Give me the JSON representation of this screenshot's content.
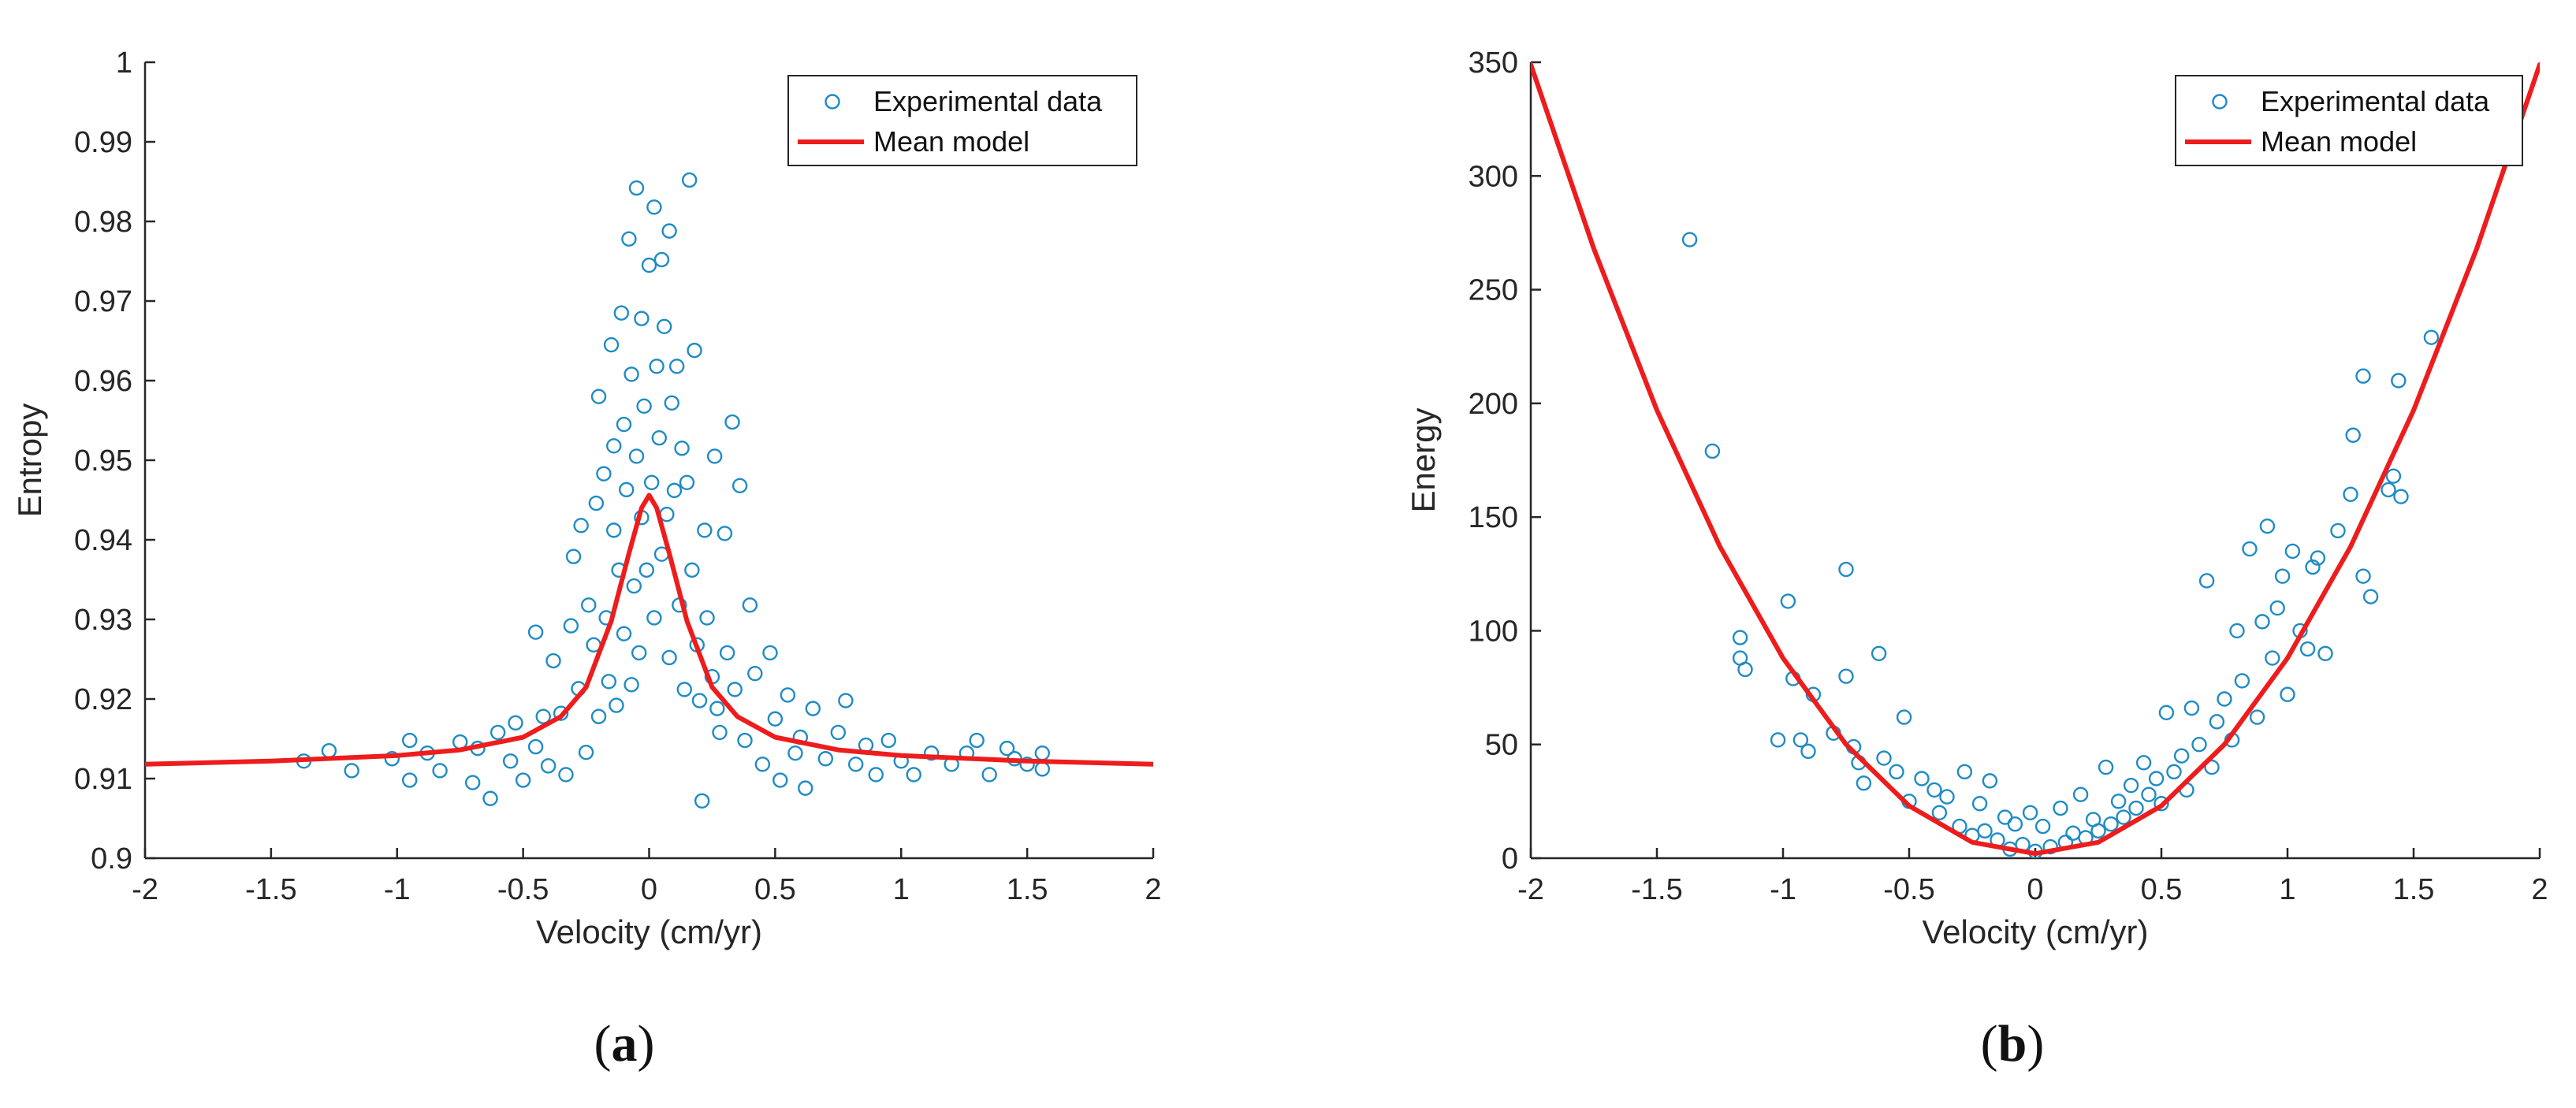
{
  "colors": {
    "data": "#1f8bc4",
    "model": "#ee1c1c"
  },
  "chart_data": [
    {
      "type": "scatter",
      "panel_label": "a",
      "title": "",
      "xlabel": "Velocity (cm/yr)",
      "ylabel": "Entropy",
      "xlim": [
        -2,
        2
      ],
      "ylim": [
        0.9,
        1.0
      ],
      "xticks": [
        -2,
        -1.5,
        -1,
        -0.5,
        0,
        0.5,
        1,
        1.5,
        2
      ],
      "xtick_labels": [
        "-2",
        "-1.5",
        "-1",
        "-0.5",
        "0",
        "0.5",
        "1",
        "1.5",
        "2"
      ],
      "yticks": [
        0.9,
        0.91,
        0.92,
        0.93,
        0.94,
        0.95,
        0.96,
        0.97,
        0.98,
        0.99,
        1.0
      ],
      "ytick_labels": [
        "0.9",
        "0.91",
        "0.92",
        "0.93",
        "0.94",
        "0.95",
        "0.96",
        "0.97",
        "0.98",
        "0.99",
        "1"
      ],
      "grid": false,
      "legend_position": "top-right",
      "series": [
        {
          "name": "Experimental data",
          "kind": "scatter",
          "points": [
            [
              -1.37,
              0.9122
            ],
            [
              -1.27,
              0.9135
            ],
            [
              -1.18,
              0.911
            ],
            [
              -1.02,
              0.9125
            ],
            [
              -0.95,
              0.9148
            ],
            [
              -0.95,
              0.9098
            ],
            [
              -0.88,
              0.9132
            ],
            [
              -0.83,
              0.911
            ],
            [
              -0.75,
              0.9146
            ],
            [
              -0.7,
              0.9095
            ],
            [
              -0.68,
              0.9138
            ],
            [
              -0.63,
              0.9075
            ],
            [
              -0.6,
              0.9158
            ],
            [
              -0.55,
              0.9122
            ],
            [
              -0.53,
              0.917
            ],
            [
              -0.5,
              0.9098
            ],
            [
              -0.45,
              0.9284
            ],
            [
              -0.45,
              0.914
            ],
            [
              -0.42,
              0.9178
            ],
            [
              -0.4,
              0.9116
            ],
            [
              -0.38,
              0.9248
            ],
            [
              -0.35,
              0.9182
            ],
            [
              -0.33,
              0.9105
            ],
            [
              -0.31,
              0.9292
            ],
            [
              -0.3,
              0.9379
            ],
            [
              -0.28,
              0.9213
            ],
            [
              -0.27,
              0.9418
            ],
            [
              -0.25,
              0.9133
            ],
            [
              -0.24,
              0.9318
            ],
            [
              -0.22,
              0.9268
            ],
            [
              -0.21,
              0.9446
            ],
            [
              -0.2,
              0.9178
            ],
            [
              -0.2,
              0.958
            ],
            [
              -0.18,
              0.9483
            ],
            [
              -0.17,
              0.9302
            ],
            [
              -0.16,
              0.9222
            ],
            [
              -0.15,
              0.9645
            ],
            [
              -0.14,
              0.9412
            ],
            [
              -0.14,
              0.9518
            ],
            [
              -0.13,
              0.9192
            ],
            [
              -0.12,
              0.9362
            ],
            [
              -0.11,
              0.9685
            ],
            [
              -0.1,
              0.9282
            ],
            [
              -0.1,
              0.9545
            ],
            [
              -0.09,
              0.9463
            ],
            [
              -0.08,
              0.9778
            ],
            [
              -0.07,
              0.9218
            ],
            [
              -0.07,
              0.9608
            ],
            [
              -0.06,
              0.9342
            ],
            [
              -0.05,
              0.9842
            ],
            [
              -0.05,
              0.9505
            ],
            [
              -0.04,
              0.9258
            ],
            [
              -0.03,
              0.9678
            ],
            [
              -0.03,
              0.9428
            ],
            [
              -0.02,
              0.9568
            ],
            [
              -0.01,
              0.9362
            ],
            [
              0.0,
              0.9745
            ],
            [
              0.01,
              0.9472
            ],
            [
              0.02,
              0.9818
            ],
            [
              0.02,
              0.9302
            ],
            [
              0.03,
              0.9618
            ],
            [
              0.04,
              0.9528
            ],
            [
              0.05,
              0.9752
            ],
            [
              0.05,
              0.9382
            ],
            [
              0.06,
              0.9668
            ],
            [
              0.07,
              0.9432
            ],
            [
              0.08,
              0.9788
            ],
            [
              0.08,
              0.9252
            ],
            [
              0.09,
              0.9572
            ],
            [
              0.1,
              0.9462
            ],
            [
              0.11,
              0.9618
            ],
            [
              0.12,
              0.9318
            ],
            [
              0.13,
              0.9515
            ],
            [
              0.14,
              0.9212
            ],
            [
              0.15,
              0.9472
            ],
            [
              0.16,
              0.9852
            ],
            [
              0.17,
              0.9362
            ],
            [
              0.18,
              0.9638
            ],
            [
              0.19,
              0.9268
            ],
            [
              0.2,
              0.9198
            ],
            [
              0.21,
              0.9072
            ],
            [
              0.22,
              0.9412
            ],
            [
              0.23,
              0.9302
            ],
            [
              0.25,
              0.9228
            ],
            [
              0.26,
              0.9505
            ],
            [
              0.27,
              0.9188
            ],
            [
              0.28,
              0.9158
            ],
            [
              0.3,
              0.9408
            ],
            [
              0.31,
              0.9258
            ],
            [
              0.33,
              0.9548
            ],
            [
              0.34,
              0.9212
            ],
            [
              0.36,
              0.9468
            ],
            [
              0.38,
              0.9148
            ],
            [
              0.4,
              0.9318
            ],
            [
              0.42,
              0.9232
            ],
            [
              0.45,
              0.9118
            ],
            [
              0.48,
              0.9258
            ],
            [
              0.5,
              0.9175
            ],
            [
              0.52,
              0.9098
            ],
            [
              0.55,
              0.9205
            ],
            [
              0.58,
              0.9132
            ],
            [
              0.6,
              0.9152
            ],
            [
              0.62,
              0.9088
            ],
            [
              0.65,
              0.9188
            ],
            [
              0.7,
              0.9125
            ],
            [
              0.75,
              0.9158
            ],
            [
              0.78,
              0.9198
            ],
            [
              0.82,
              0.9118
            ],
            [
              0.86,
              0.9142
            ],
            [
              0.9,
              0.9105
            ],
            [
              0.95,
              0.9148
            ],
            [
              1.0,
              0.9122
            ],
            [
              1.05,
              0.9105
            ],
            [
              1.12,
              0.9132
            ],
            [
              1.2,
              0.9118
            ],
            [
              1.26,
              0.9132
            ],
            [
              1.3,
              0.9148
            ],
            [
              1.35,
              0.9105
            ],
            [
              1.42,
              0.9138
            ],
            [
              1.45,
              0.9125
            ],
            [
              1.5,
              0.9118
            ],
            [
              1.56,
              0.9132
            ],
            [
              1.56,
              0.9112
            ]
          ]
        },
        {
          "name": "Mean model",
          "kind": "line",
          "x": [
            -2.0,
            -1.5,
            -1.0,
            -0.75,
            -0.5,
            -0.35,
            -0.25,
            -0.15,
            -0.08,
            -0.03,
            0.0,
            0.03,
            0.08,
            0.15,
            0.25,
            0.35,
            0.5,
            0.75,
            1.0,
            1.5,
            2.0
          ],
          "y": [
            0.9118,
            0.9122,
            0.9129,
            0.9136,
            0.9152,
            0.9178,
            0.9215,
            0.9298,
            0.9383,
            0.944,
            0.9456,
            0.944,
            0.9383,
            0.9298,
            0.9215,
            0.9178,
            0.9152,
            0.9136,
            0.9129,
            0.9122,
            0.9118
          ]
        }
      ]
    },
    {
      "type": "scatter",
      "panel_label": "b",
      "title": "",
      "xlabel": "Velocity (cm/yr)",
      "ylabel": "Energy",
      "xlim": [
        -2,
        2
      ],
      "ylim": [
        0,
        350
      ],
      "xticks": [
        -2,
        -1.5,
        -1,
        -0.5,
        0,
        0.5,
        1,
        1.5,
        2
      ],
      "xtick_labels": [
        "-2",
        "-1.5",
        "-1",
        "-0.5",
        "0",
        "0.5",
        "1",
        "1.5",
        "2"
      ],
      "yticks": [
        0,
        50,
        100,
        150,
        200,
        250,
        300,
        350
      ],
      "ytick_labels": [
        "0",
        "50",
        "100",
        "150",
        "200",
        "250",
        "300",
        "350"
      ],
      "grid": false,
      "legend_position": "top-right",
      "series": [
        {
          "name": "Experimental data",
          "kind": "scatter",
          "points": [
            [
              -1.37,
              272
            ],
            [
              -1.28,
              179
            ],
            [
              -1.17,
              97
            ],
            [
              -1.17,
              88
            ],
            [
              -1.15,
              83
            ],
            [
              -0.98,
              113
            ],
            [
              -1.02,
              52
            ],
            [
              -0.96,
              79
            ],
            [
              -0.93,
              52
            ],
            [
              -0.9,
              47
            ],
            [
              -0.88,
              72
            ],
            [
              -0.8,
              55
            ],
            [
              -0.75,
              127
            ],
            [
              -0.75,
              80
            ],
            [
              -0.72,
              49
            ],
            [
              -0.7,
              42
            ],
            [
              -0.68,
              33
            ],
            [
              -0.62,
              90
            ],
            [
              -0.6,
              44
            ],
            [
              -0.55,
              38
            ],
            [
              -0.52,
              62
            ],
            [
              -0.5,
              25
            ],
            [
              -0.45,
              35
            ],
            [
              -0.4,
              30
            ],
            [
              -0.38,
              20
            ],
            [
              -0.35,
              27
            ],
            [
              -0.3,
              14
            ],
            [
              -0.28,
              38
            ],
            [
              -0.25,
              10
            ],
            [
              -0.22,
              24
            ],
            [
              -0.2,
              12
            ],
            [
              -0.18,
              34
            ],
            [
              -0.15,
              8
            ],
            [
              -0.12,
              18
            ],
            [
              -0.1,
              4
            ],
            [
              -0.08,
              15
            ],
            [
              -0.05,
              6
            ],
            [
              -0.02,
              20
            ],
            [
              0.0,
              3
            ],
            [
              0.03,
              14
            ],
            [
              0.06,
              5
            ],
            [
              0.1,
              22
            ],
            [
              0.12,
              7
            ],
            [
              0.15,
              11
            ],
            [
              0.18,
              28
            ],
            [
              0.2,
              9
            ],
            [
              0.23,
              17
            ],
            [
              0.25,
              12
            ],
            [
              0.28,
              40
            ],
            [
              0.3,
              15
            ],
            [
              0.33,
              25
            ],
            [
              0.35,
              18
            ],
            [
              0.38,
              32
            ],
            [
              0.4,
              22
            ],
            [
              0.43,
              42
            ],
            [
              0.45,
              28
            ],
            [
              0.48,
              35
            ],
            [
              0.5,
              24
            ],
            [
              0.52,
              64
            ],
            [
              0.55,
              38
            ],
            [
              0.58,
              45
            ],
            [
              0.6,
              30
            ],
            [
              0.62,
              66
            ],
            [
              0.65,
              50
            ],
            [
              0.68,
              122
            ],
            [
              0.7,
              40
            ],
            [
              0.72,
              60
            ],
            [
              0.75,
              70
            ],
            [
              0.78,
              52
            ],
            [
              0.8,
              100
            ],
            [
              0.82,
              78
            ],
            [
              0.85,
              136
            ],
            [
              0.88,
              62
            ],
            [
              0.9,
              104
            ],
            [
              0.92,
              146
            ],
            [
              0.94,
              88
            ],
            [
              0.96,
              110
            ],
            [
              0.98,
              124
            ],
            [
              1.0,
              72
            ],
            [
              1.02,
              135
            ],
            [
              1.05,
              100
            ],
            [
              1.08,
              92
            ],
            [
              1.1,
              128
            ],
            [
              1.12,
              132
            ],
            [
              1.15,
              90
            ],
            [
              1.2,
              144
            ],
            [
              1.25,
              160
            ],
            [
              1.26,
              186
            ],
            [
              1.3,
              212
            ],
            [
              1.3,
              124
            ],
            [
              1.33,
              115
            ],
            [
              1.4,
              162
            ],
            [
              1.42,
              168
            ],
            [
              1.44,
              210
            ],
            [
              1.45,
              159
            ],
            [
              1.57,
              229
            ]
          ]
        },
        {
          "name": "Mean model",
          "kind": "line",
          "x": [
            -2.0,
            -1.75,
            -1.5,
            -1.25,
            -1.0,
            -0.75,
            -0.5,
            -0.25,
            0.0,
            0.25,
            0.5,
            0.75,
            1.0,
            1.25,
            1.5,
            1.75,
            2.0
          ],
          "y": [
            349,
            268,
            197,
            137,
            88,
            50,
            23,
            7,
            2,
            7,
            23,
            50,
            88,
            137,
            197,
            268,
            349
          ]
        }
      ]
    }
  ]
}
